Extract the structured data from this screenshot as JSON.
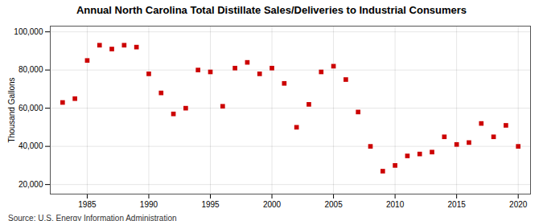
{
  "chart_data": {
    "type": "scatter",
    "title": "Annual North Carolina Total Distillate Sales/Deliveries to Industrial Consumers",
    "ylabel": "Thousand Gallons",
    "source": "Source: U.S. Energy Information Administration",
    "x": [
      1983,
      1984,
      1985,
      1986,
      1987,
      1988,
      1989,
      1990,
      1991,
      1992,
      1993,
      1994,
      1995,
      1996,
      1997,
      1998,
      1999,
      2000,
      2001,
      2002,
      2003,
      2004,
      2005,
      2006,
      2007,
      2008,
      2009,
      2010,
      2011,
      2012,
      2013,
      2014,
      2015,
      2016,
      2017,
      2018,
      2019,
      2020
    ],
    "values": [
      63000,
      65000,
      85000,
      93000,
      91000,
      93000,
      92000,
      78000,
      68000,
      57000,
      60000,
      80000,
      79000,
      61000,
      81000,
      84000,
      78000,
      81000,
      73000,
      50000,
      62000,
      79000,
      82000,
      75000,
      58000,
      40000,
      27000,
      30000,
      35000,
      36000,
      37000,
      45000,
      41000,
      42000,
      52000,
      45000,
      51000,
      40000
    ],
    "color": "#cc0000",
    "marker": "square",
    "xlim": [
      1982,
      2021
    ],
    "ylim": [
      15000,
      103000
    ],
    "xticks": [
      1985,
      1990,
      1995,
      2000,
      2005,
      2010,
      2015,
      2020
    ],
    "yticks": [
      {
        "value": 20000,
        "label": "20,000"
      },
      {
        "value": 40000,
        "label": "40,000"
      },
      {
        "value": 60000,
        "label": "60,000"
      },
      {
        "value": 80000,
        "label": "80,000"
      },
      {
        "value": 100000,
        "label": "100,000"
      }
    ],
    "grid": true
  }
}
